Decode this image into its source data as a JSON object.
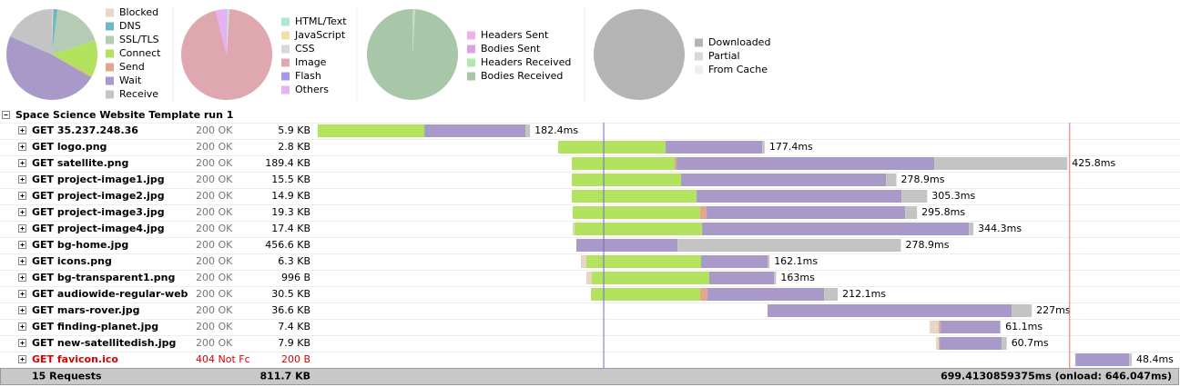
{
  "pies": [
    {
      "legend": [
        {
          "label": "Blocked",
          "color": "#e6d6c4",
          "value": 0.5
        },
        {
          "label": "DNS",
          "color": "#6fb7c7",
          "value": 1.5
        },
        {
          "label": "SSL/TLS",
          "color": "#b5cbb3",
          "value": 18
        },
        {
          "label": "Connect",
          "color": "#b3e35e",
          "value": 13
        },
        {
          "label": "Send",
          "color": "#e2a68e",
          "value": 0.5
        },
        {
          "label": "Wait",
          "color": "#a899c9",
          "value": 48
        },
        {
          "label": "Receive",
          "color": "#c4c4c4",
          "value": 18.5
        }
      ]
    },
    {
      "legend": [
        {
          "label": "HTML/Text",
          "color": "#aee6d6",
          "value": 0.5
        },
        {
          "label": "JavaScript",
          "color": "#f2e0a6",
          "value": 0
        },
        {
          "label": "CSS",
          "color": "#d8d6e0",
          "value": 0.5
        },
        {
          "label": "Image",
          "color": "#dfa8b0",
          "value": 95
        },
        {
          "label": "Flash",
          "color": "#a998e8",
          "value": 0
        },
        {
          "label": "Others",
          "color": "#e7b0f2",
          "value": 4
        }
      ]
    },
    {
      "legend": [
        {
          "label": "Headers Sent",
          "color": "#f0b0e8",
          "value": 0.3
        },
        {
          "label": "Bodies Sent",
          "color": "#dfa0e8",
          "value": 0
        },
        {
          "label": "Headers Received",
          "color": "#b0e8b0",
          "value": 0.7
        },
        {
          "label": "Bodies Received",
          "color": "#a8c6a8",
          "value": 99
        }
      ]
    },
    {
      "legend": [
        {
          "label": "Downloaded",
          "color": "#b4b4b4",
          "value": 100
        },
        {
          "label": "Partial",
          "color": "#d8d8d8",
          "value": 0
        },
        {
          "label": "From Cache",
          "color": "#eeeeee",
          "value": 0
        }
      ]
    }
  ],
  "run": {
    "title": "Space Science Website Template run 1",
    "timeline_ms": [
      0,
      699.4130859375
    ],
    "dom_content_loaded_ms": 245.7,
    "onload_ms": 646.047,
    "requests": [
      {
        "url": "GET 35.237.248.36",
        "status": "200 OK",
        "size": "5.9 KB",
        "start_ms": 0,
        "phases": [
          {
            "phase": "Connect",
            "ms": 91.6
          },
          {
            "phase": "Wait",
            "ms": 86.9
          },
          {
            "phase": "Receive",
            "ms": 3.9
          }
        ],
        "duration": "182.4ms",
        "error": false
      },
      {
        "url": "GET logo.png",
        "status": "200 OK",
        "size": "2.8 KB",
        "start_ms": 206.6,
        "phases": [
          {
            "phase": "Connect",
            "ms": 92.3
          },
          {
            "phase": "Wait",
            "ms": 83
          },
          {
            "phase": "Receive",
            "ms": 2.1
          }
        ],
        "duration": "177.4ms",
        "error": false
      },
      {
        "url": "GET satellite.png",
        "status": "200 OK",
        "size": "189.4 KB",
        "start_ms": 218.3,
        "phases": [
          {
            "phase": "Connect",
            "ms": 88.4
          },
          {
            "phase": "Send",
            "ms": 1.6
          },
          {
            "phase": "Wait",
            "ms": 221.4
          },
          {
            "phase": "Receive",
            "ms": 114.4
          }
        ],
        "duration": "425.8ms",
        "error": false
      },
      {
        "url": "GET project-image1.jpg",
        "status": "200 OK",
        "size": "15.5 KB",
        "start_ms": 218.3,
        "phases": [
          {
            "phase": "Connect",
            "ms": 93.9
          },
          {
            "phase": "Wait",
            "ms": 176.1
          },
          {
            "phase": "Receive",
            "ms": 8.9
          }
        ],
        "duration": "278.9ms",
        "error": false
      },
      {
        "url": "GET project-image2.jpg",
        "status": "200 OK",
        "size": "14.9 KB",
        "start_ms": 218.3,
        "phases": [
          {
            "phase": "Connect",
            "ms": 107.2
          },
          {
            "phase": "Wait",
            "ms": 176.1
          },
          {
            "phase": "Receive",
            "ms": 22
          }
        ],
        "duration": "305.3ms",
        "error": false
      },
      {
        "url": "GET project-image3.jpg",
        "status": "200 OK",
        "size": "19.3 KB",
        "start_ms": 219.1,
        "phases": [
          {
            "phase": "Connect",
            "ms": 109.5
          },
          {
            "phase": "Send",
            "ms": 5.5
          },
          {
            "phase": "Wait",
            "ms": 170.6
          },
          {
            "phase": "Receive",
            "ms": 10.2
          }
        ],
        "duration": "295.8ms",
        "error": false
      },
      {
        "url": "GET project-image4.jpg",
        "status": "200 OK",
        "size": "17.4 KB",
        "start_ms": 219.1,
        "phases": [
          {
            "phase": "Blocked",
            "ms": 1.6
          },
          {
            "phase": "Connect",
            "ms": 109.5
          },
          {
            "phase": "Wait",
            "ms": 229.3
          },
          {
            "phase": "Receive",
            "ms": 3.9
          }
        ],
        "duration": "344.3ms",
        "error": false
      },
      {
        "url": "GET bg-home.jpg",
        "status": "200 OK",
        "size": "456.6 KB",
        "start_ms": 222.2,
        "phases": [
          {
            "phase": "Wait",
            "ms": 86.9
          },
          {
            "phase": "Receive",
            "ms": 192
          }
        ],
        "duration": "278.9ms",
        "error": false
      },
      {
        "url": "GET icons.png",
        "status": "200 OK",
        "size": "6.3 KB",
        "start_ms": 226.1,
        "phases": [
          {
            "phase": "Blocked",
            "ms": 4.7
          },
          {
            "phase": "Connect",
            "ms": 98.6
          },
          {
            "phase": "Wait",
            "ms": 57.1
          },
          {
            "phase": "Receive",
            "ms": 1.7
          }
        ],
        "duration": "162.1ms",
        "error": false
      },
      {
        "url": "GET bg-transparent1.png",
        "status": "200 OK",
        "size": "996 B",
        "start_ms": 230.8,
        "phases": [
          {
            "phase": "Blocked",
            "ms": 4.7
          },
          {
            "phase": "Connect",
            "ms": 100.9
          },
          {
            "phase": "Wait",
            "ms": 55.6
          },
          {
            "phase": "Receive",
            "ms": 1.8
          }
        ],
        "duration": "163ms",
        "error": false
      },
      {
        "url": "GET audiowide-regular-web",
        "status": "200 OK",
        "size": "30.5 KB",
        "start_ms": 234.7,
        "phases": [
          {
            "phase": "Connect",
            "ms": 93.9
          },
          {
            "phase": "Send",
            "ms": 6.3
          },
          {
            "phase": "Wait",
            "ms": 100.2
          },
          {
            "phase": "Receive",
            "ms": 11.7
          }
        ],
        "duration": "212.1ms",
        "error": false
      },
      {
        "url": "GET mars-rover.jpg",
        "status": "200 OK",
        "size": "36.6 KB",
        "start_ms": 386.5,
        "phases": [
          {
            "phase": "Wait",
            "ms": 209.7
          },
          {
            "phase": "Receive",
            "ms": 17.3
          }
        ],
        "duration": "227ms",
        "error": false
      },
      {
        "url": "GET finding-planet.jpg",
        "status": "200 OK",
        "size": "7.4 KB",
        "start_ms": 525.8,
        "phases": [
          {
            "phase": "Blocked",
            "ms": 7.8
          },
          {
            "phase": "Send",
            "ms": 1.6
          },
          {
            "phase": "Wait",
            "ms": 50.9
          },
          {
            "phase": "Receive",
            "ms": 0.8
          }
        ],
        "duration": "61.1ms",
        "error": false
      },
      {
        "url": "GET new-satellitedish.jpg",
        "status": "200 OK",
        "size": "7.9 KB",
        "start_ms": 531.3,
        "phases": [
          {
            "phase": "Blocked",
            "ms": 2.3
          },
          {
            "phase": "Send",
            "ms": 0.8
          },
          {
            "phase": "Wait",
            "ms": 53.2
          },
          {
            "phase": "Receive",
            "ms": 4.4
          }
        ],
        "duration": "60.7ms",
        "error": false
      },
      {
        "url": "GET favicon.ico",
        "status": "404 Not Fc",
        "size": "200 B",
        "start_ms": 651,
        "phases": [
          {
            "phase": "Wait",
            "ms": 46.2
          },
          {
            "phase": "Receive",
            "ms": 2.2
          }
        ],
        "duration": "48.4ms",
        "error": true
      }
    ],
    "footer": {
      "requests": "15 Requests",
      "size": "811.7 KB",
      "total": "699.4130859375ms (onload: 646.047ms)"
    }
  }
}
